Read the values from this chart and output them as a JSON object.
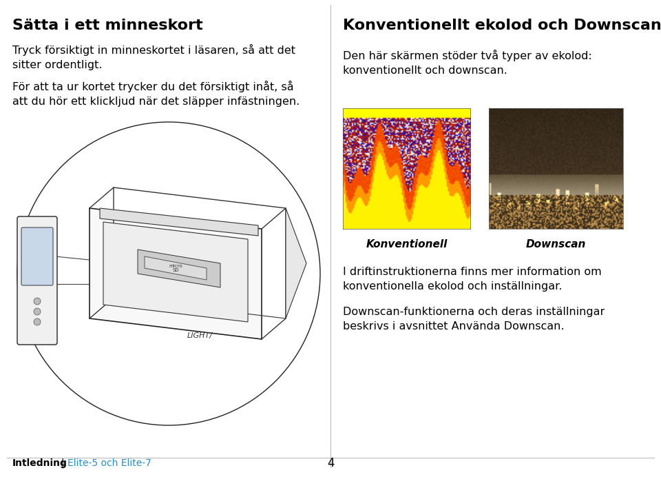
{
  "bg_color": "#ffffff",
  "text_color": "#000000",
  "blue_color": "#2d8bbf",
  "separator_color": "#bbbbbb",
  "title_left": "Sätta i ett minneskort",
  "title_right": "Konventionellt ekolod och Downscan",
  "left_para1_line1": "Tryck försiktigt in minneskortet i läsaren, så att det",
  "left_para1_line2": "sitter ordentligt.",
  "left_para2_line1": "För att ta ur kortet trycker du det försiktigt inåt, så",
  "left_para2_line2": "att du hör ett klickljud när det släpper infästningen.",
  "right_para1_line1": "Den här skärmen stöder två typer av ekolod:",
  "right_para1_line2": "konventionellt och downscan.",
  "label_konventionell": "Konventionell",
  "label_downscan": "Downscan",
  "right_para2_line1": "I driftinstruktionerna finns mer information om",
  "right_para2_line2": "konventionella ekolod och inställningar.",
  "right_para3_line1": "Downscan-funktionerna och deras inställningar",
  "right_para3_line2": "beskrivs i avsnittet Använda Downscan.",
  "footer_bold": "Intledning",
  "footer_pipe": " | ",
  "footer_blue": "Elite-5 och Elite-7",
  "footer_page": "4",
  "title_fontsize": 16,
  "body_fontsize": 11.5,
  "label_fontsize": 11,
  "footer_fontsize": 10
}
